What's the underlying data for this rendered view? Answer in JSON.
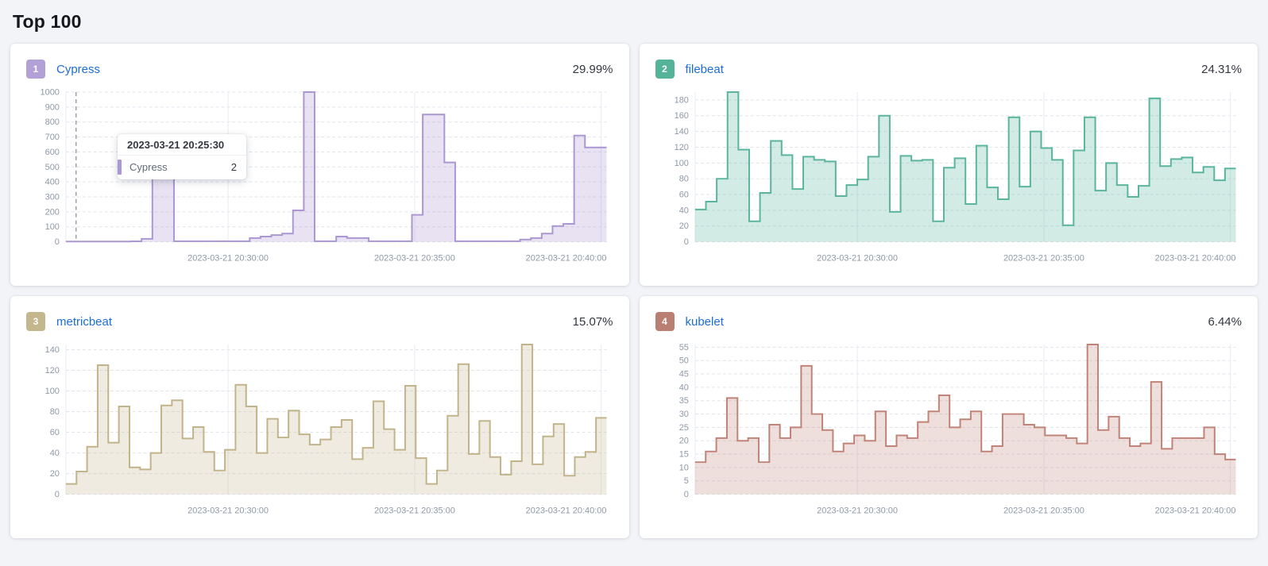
{
  "page": {
    "title": "Top 100",
    "background": "#f2f4f8",
    "link_color": "#1e6dd8"
  },
  "x_axis_labels": [
    "2023-03-21 20:30:00",
    "2023-03-21 20:35:00",
    "2023-03-21 20:40:00"
  ],
  "tooltip": {
    "timestamp": "2023-03-21 20:25:30",
    "series": "Cypress",
    "value": "2",
    "marker_color": "#ab97d2"
  },
  "chart_data": [
    {
      "type": "area",
      "rank": "1",
      "title": "Cypress",
      "percent": "29.99%",
      "badge_color": "#b3a0d6",
      "stroke": "#ab97d2",
      "fill": "rgba(171,151,210,0.28)",
      "ylim": [
        0,
        1000
      ],
      "yticks": [
        0,
        100,
        200,
        300,
        400,
        500,
        600,
        700,
        800,
        900,
        1000
      ],
      "has_crosshair": true,
      "crosshair_frac": 0.019,
      "values": [
        2,
        2,
        2,
        2,
        2,
        2,
        3,
        20,
        520,
        520,
        4,
        4,
        4,
        4,
        4,
        4,
        4,
        25,
        35,
        45,
        55,
        210,
        1000,
        4,
        4,
        35,
        25,
        25,
        4,
        4,
        4,
        4,
        180,
        850,
        850,
        530,
        4,
        4,
        4,
        4,
        4,
        4,
        15,
        25,
        55,
        105,
        120,
        710,
        630,
        630
      ]
    },
    {
      "type": "area",
      "rank": "2",
      "title": "filebeat",
      "percent": "24.31%",
      "badge_color": "#54b399",
      "stroke": "#5ab59c",
      "fill": "rgba(84,179,153,0.26)",
      "ylim": [
        0,
        190
      ],
      "yticks": [
        0,
        20,
        40,
        60,
        80,
        100,
        120,
        140,
        160,
        180
      ],
      "has_crosshair": false,
      "values": [
        41,
        51,
        80,
        190,
        117,
        26,
        62,
        128,
        110,
        67,
        108,
        104,
        102,
        58,
        72,
        79,
        108,
        160,
        38,
        109,
        103,
        104,
        26,
        94,
        106,
        48,
        122,
        69,
        54,
        158,
        70,
        140,
        119,
        104,
        21,
        116,
        158,
        65,
        100,
        72,
        57,
        71,
        182,
        96,
        105,
        107,
        88,
        95,
        78,
        93
      ]
    },
    {
      "type": "area",
      "rank": "3",
      "title": "metricbeat",
      "percent": "15.07%",
      "badge_color": "#c4b78d",
      "stroke": "#c2b48a",
      "fill": "rgba(197,184,147,0.28)",
      "ylim": [
        0,
        145
      ],
      "yticks": [
        0,
        20,
        40,
        60,
        80,
        100,
        120,
        140
      ],
      "has_crosshair": false,
      "values": [
        10,
        22,
        46,
        125,
        50,
        85,
        26,
        24,
        40,
        86,
        91,
        54,
        65,
        41,
        23,
        43,
        106,
        85,
        40,
        73,
        55,
        81,
        58,
        48,
        53,
        65,
        72,
        34,
        45,
        90,
        63,
        43,
        105,
        35,
        10,
        23,
        76,
        126,
        39,
        71,
        36,
        19,
        32,
        145,
        29,
        56,
        68,
        18,
        36,
        41,
        74
      ]
    },
    {
      "type": "area",
      "rank": "4",
      "title": "kubelet",
      "percent": "6.44%",
      "badge_color": "#b97f72",
      "stroke": "#c08377",
      "fill": "rgba(192,131,119,0.26)",
      "ylim": [
        0,
        56
      ],
      "yticks": [
        0,
        5,
        10,
        15,
        20,
        25,
        30,
        35,
        40,
        45,
        50,
        55
      ],
      "has_crosshair": false,
      "values": [
        12,
        16,
        21,
        36,
        20,
        21,
        12,
        26,
        21,
        25,
        48,
        30,
        24,
        16,
        19,
        22,
        20,
        31,
        18,
        22,
        21,
        27,
        31,
        37,
        25,
        28,
        31,
        16,
        18,
        30,
        30,
        26,
        25,
        22,
        22,
        21,
        19,
        56,
        24,
        29,
        21,
        18,
        19,
        42,
        17,
        21,
        21,
        21,
        25,
        15,
        13
      ]
    }
  ]
}
